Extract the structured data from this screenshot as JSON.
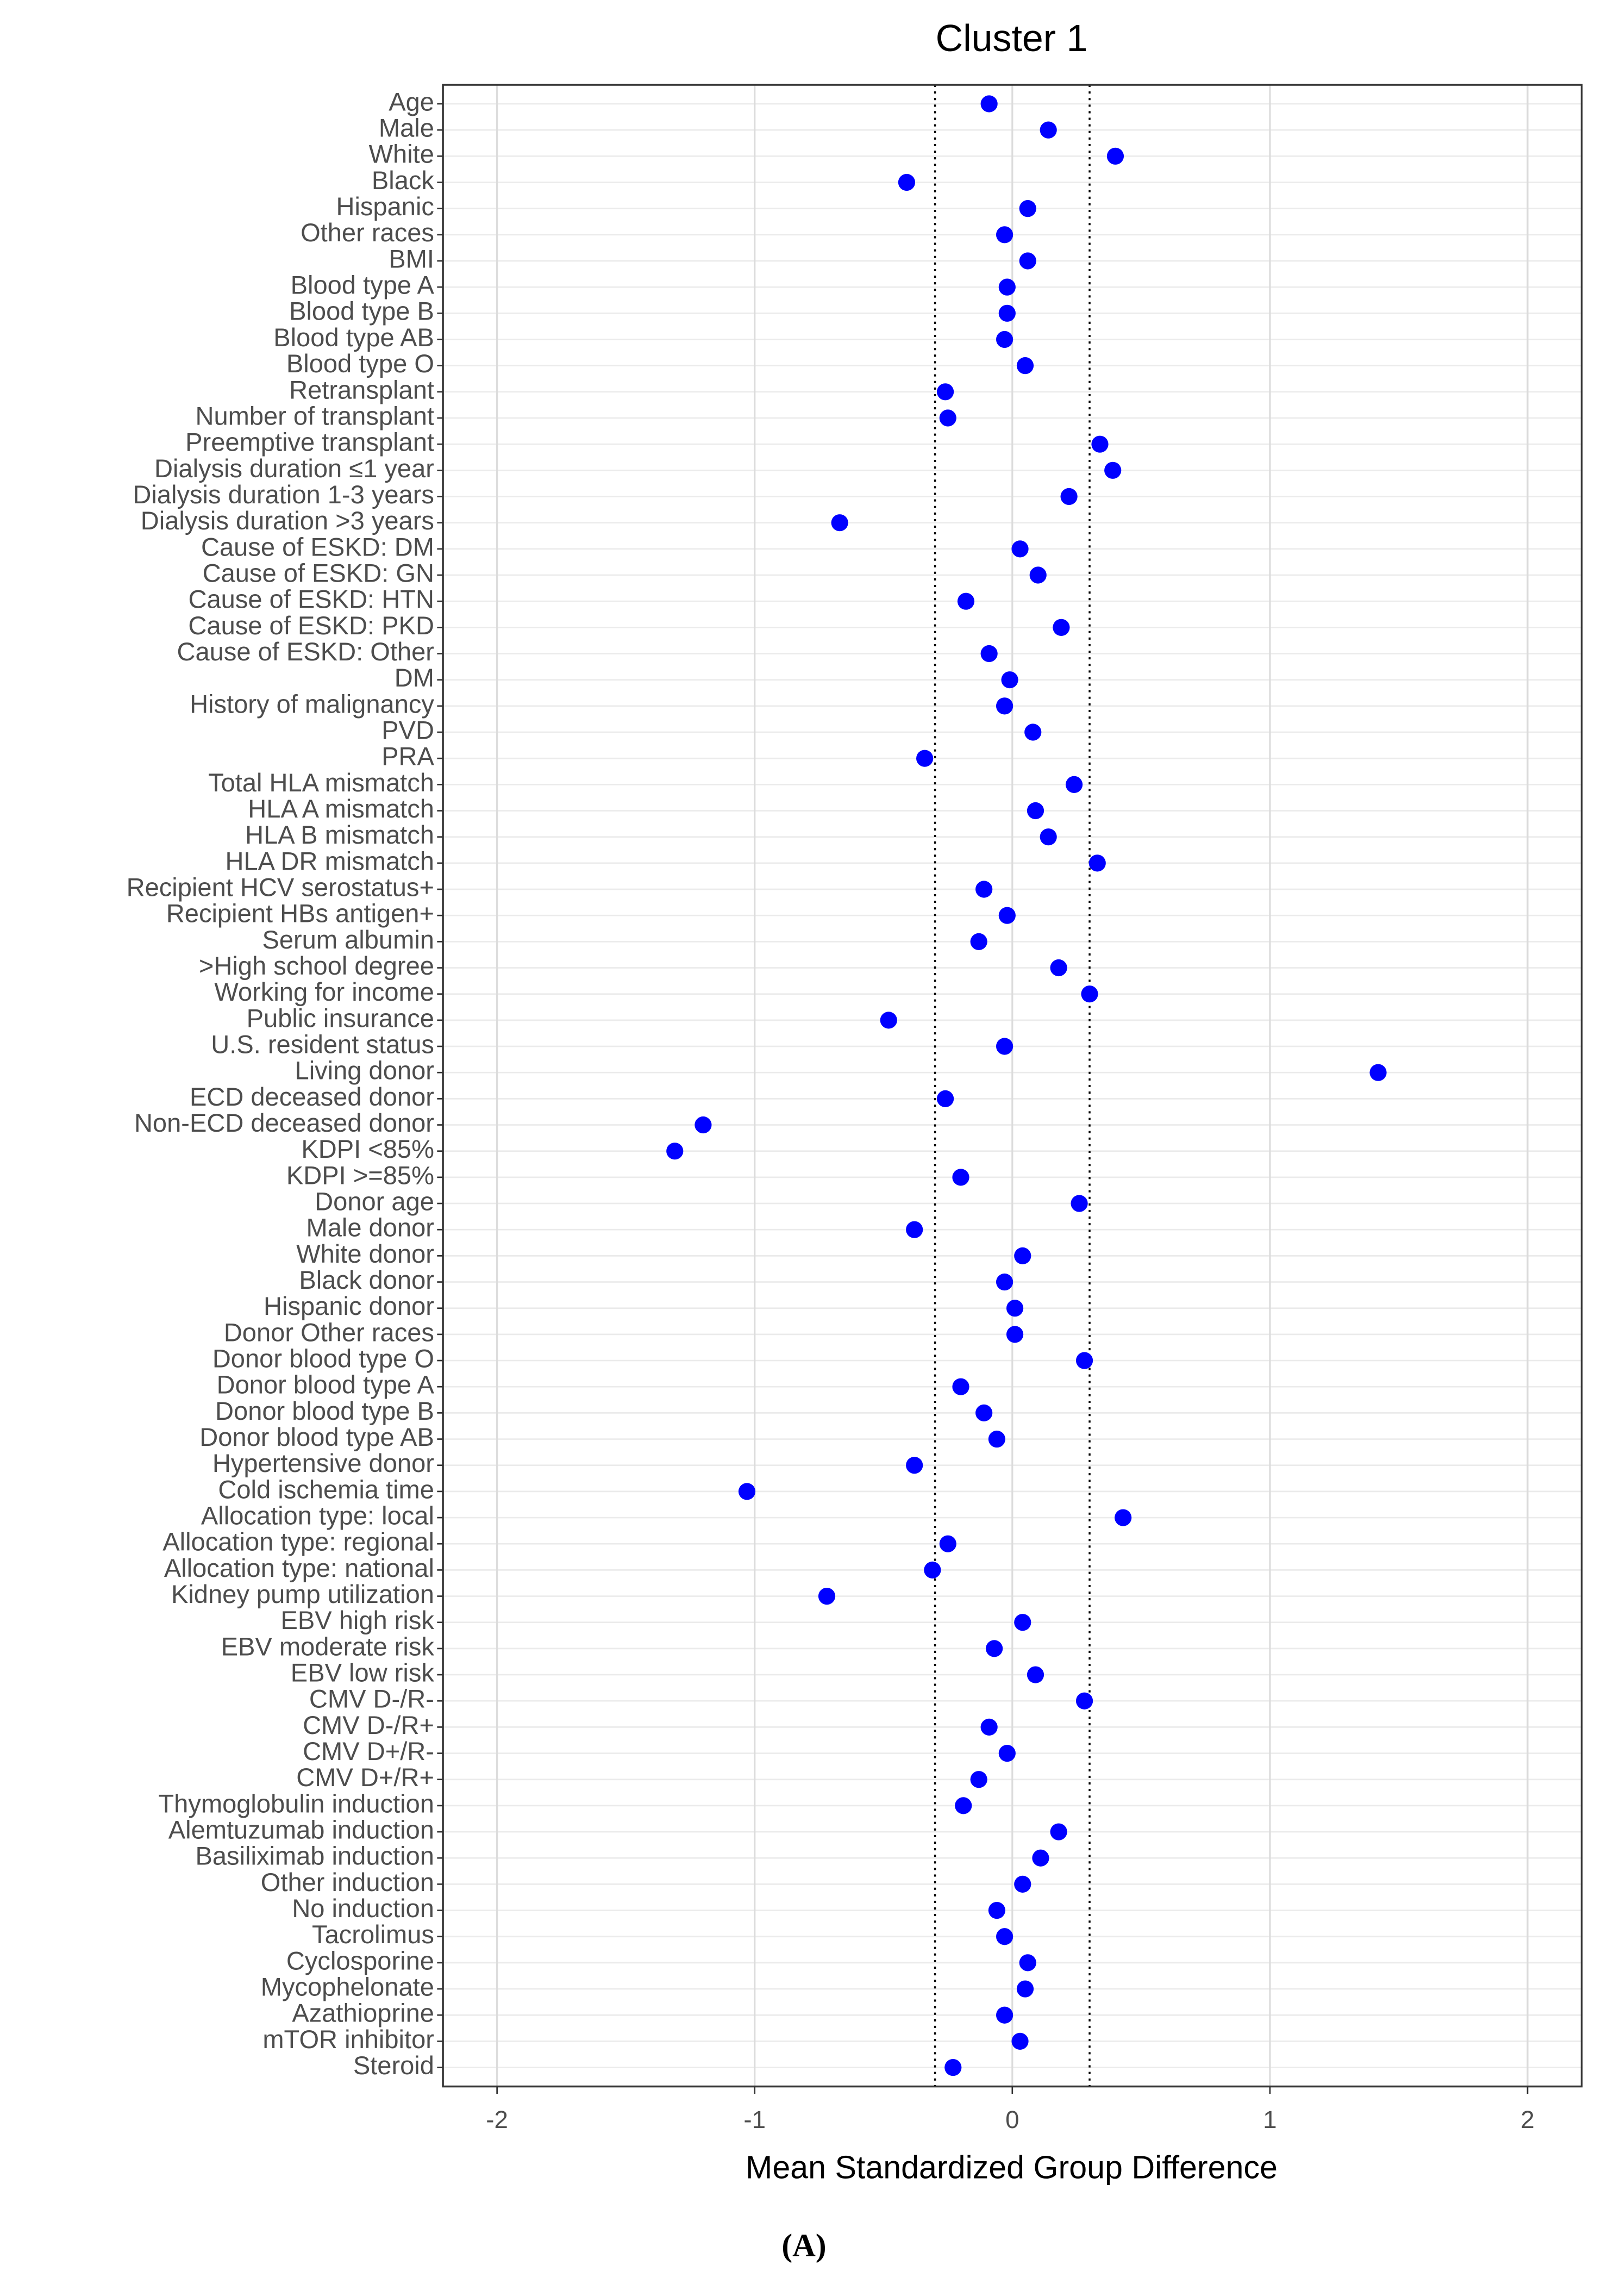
{
  "chart_data": {
    "type": "dot",
    "title": "Cluster 1",
    "xlabel": "Mean Standardized Group Difference",
    "caption": "(A)",
    "categories": [
      "Age",
      "Male",
      "White",
      "Black",
      "Hispanic",
      "Other races",
      "BMI",
      "Blood type A",
      "Blood type B",
      "Blood type AB",
      "Blood type O",
      "Retransplant",
      "Number of transplant",
      "Preemptive transplant",
      "Dialysis duration ≤1 year",
      "Dialysis duration 1-3 years",
      "Dialysis duration >3 years",
      "Cause of ESKD: DM",
      "Cause of ESKD: GN",
      "Cause of ESKD: HTN",
      "Cause of ESKD: PKD",
      "Cause of ESKD: Other",
      "DM",
      "History of malignancy",
      "PVD",
      "PRA",
      "Total HLA mismatch",
      "HLA A mismatch",
      "HLA B mismatch",
      "HLA DR mismatch",
      "Recipient HCV serostatus+",
      "Recipient HBs antigen+",
      "Serum albumin",
      ">High school degree",
      "Working for income",
      "Public insurance",
      "U.S. resident status",
      "Living donor",
      "ECD deceased donor",
      "Non-ECD deceased donor",
      "KDPI <85%",
      "KDPI >=85%",
      "Donor age",
      "Male donor",
      "White donor",
      "Black donor",
      "Hispanic donor",
      "Donor Other races",
      "Donor blood type O",
      "Donor blood type A",
      "Donor blood type B",
      "Donor blood type AB",
      "Hypertensive donor",
      "Cold ischemia time",
      "Allocation type: local",
      "Allocation type: regional",
      "Allocation type: national",
      "Kidney pump utilization",
      "EBV high risk",
      "EBV moderate risk",
      "EBV low risk",
      "CMV D-/R-",
      "CMV D-/R+",
      "CMV D+/R-",
      "CMV D+/R+",
      "Thymoglobulin induction",
      "Alemtuzumab induction",
      "Basiliximab induction",
      "Other induction",
      "No induction",
      "Tacrolimus",
      "Cyclosporine",
      "Mycophelonate",
      "Azathioprine",
      "mTOR inhibitor",
      "Steroid"
    ],
    "values": [
      -0.09,
      0.14,
      0.4,
      -0.41,
      0.06,
      -0.03,
      0.06,
      -0.02,
      -0.02,
      -0.03,
      0.05,
      -0.26,
      -0.25,
      0.34,
      0.39,
      0.22,
      -0.67,
      0.03,
      0.1,
      -0.18,
      0.19,
      -0.09,
      -0.01,
      -0.03,
      0.08,
      -0.34,
      0.24,
      0.09,
      0.14,
      0.33,
      -0.11,
      -0.02,
      -0.13,
      0.18,
      0.3,
      -0.48,
      -0.03,
      1.42,
      -0.26,
      -1.2,
      -1.31,
      -0.2,
      0.26,
      -0.38,
      0.04,
      -0.03,
      0.01,
      0.01,
      0.28,
      -0.2,
      -0.11,
      -0.06,
      -0.38,
      -1.03,
      0.43,
      -0.25,
      -0.31,
      -0.72,
      0.04,
      -0.07,
      0.09,
      0.28,
      -0.09,
      -0.02,
      -0.13,
      -0.19,
      0.18,
      0.11,
      0.04,
      -0.06,
      -0.03,
      0.06,
      0.05,
      -0.03,
      0.03,
      -0.23
    ],
    "color": "#0000ff",
    "reference_lines": [
      -0.3,
      0.3
    ],
    "xlim": [
      -2.21,
      2.21
    ],
    "xticks": [
      -2,
      -1,
      0,
      1,
      2
    ],
    "grid": true
  }
}
